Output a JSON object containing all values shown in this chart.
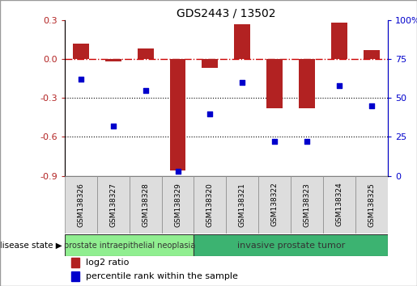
{
  "title": "GDS2443 / 13502",
  "samples": [
    "GSM138326",
    "GSM138327",
    "GSM138328",
    "GSM138329",
    "GSM138320",
    "GSM138321",
    "GSM138322",
    "GSM138323",
    "GSM138324",
    "GSM138325"
  ],
  "log2_ratio": [
    0.12,
    -0.02,
    0.08,
    -0.86,
    -0.07,
    0.27,
    -0.38,
    -0.38,
    0.28,
    0.07
  ],
  "percentile_rank": [
    62,
    32,
    55,
    3,
    40,
    60,
    22,
    22,
    58,
    45
  ],
  "bar_color": "#B22222",
  "dot_color": "#0000CC",
  "zero_line_color": "#CC0000",
  "left_yticks": [
    0.3,
    0.0,
    -0.3,
    -0.6,
    -0.9
  ],
  "right_yticks": [
    100,
    75,
    50,
    25,
    0
  ],
  "ylim_left": [
    -0.9,
    0.3
  ],
  "ylim_right": [
    0,
    100
  ],
  "disease_groups": [
    {
      "label": "prostate intraepithelial neoplasia",
      "n_samples": 4,
      "color": "#90EE90"
    },
    {
      "label": "invasive prostate tumor",
      "n_samples": 6,
      "color": "#3CB371"
    }
  ],
  "legend_bar_label": "log2 ratio",
  "legend_dot_label": "percentile rank within the sample",
  "disease_state_label": "disease state",
  "figsize": [
    5.15,
    3.54
  ],
  "dpi": 100
}
